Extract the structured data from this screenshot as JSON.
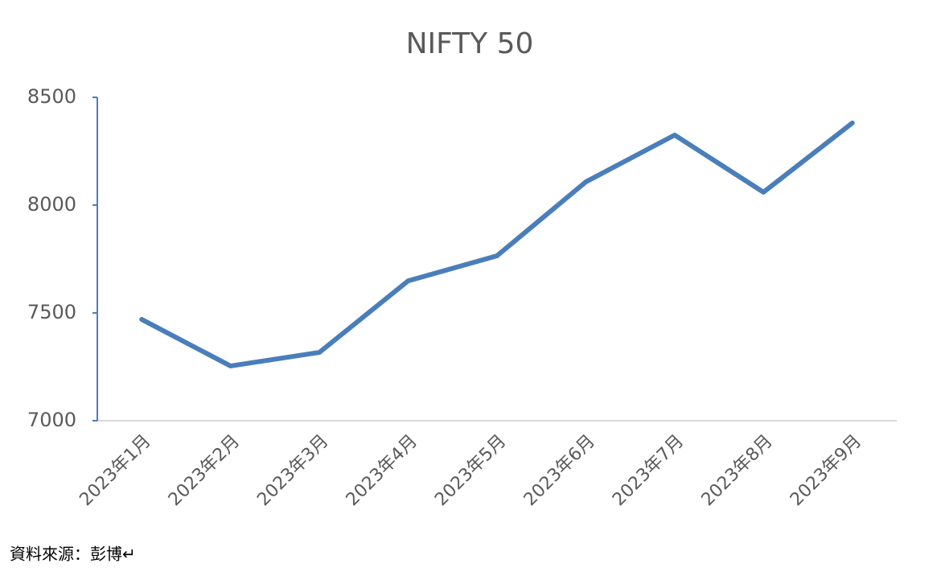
{
  "chart_data": {
    "type": "line",
    "title": "NIFTY 50",
    "categories": [
      "2023年1月",
      "2023年2月",
      "2023年3月",
      "2023年4月",
      "2023年5月",
      "2023年6月",
      "2023年7月",
      "2023年8月",
      "2023年9月"
    ],
    "series": [
      {
        "name": "NIFTY 50",
        "color": "#4a7ebb",
        "values": [
          7470,
          7254,
          7317,
          7649,
          7765,
          8108,
          8325,
          8060,
          8381
        ]
      }
    ],
    "ylim": [
      7000,
      8500
    ],
    "yticks": [
      7000,
      7500,
      8000,
      8500
    ],
    "grid": false,
    "source": "資料來源：彭博↵"
  }
}
